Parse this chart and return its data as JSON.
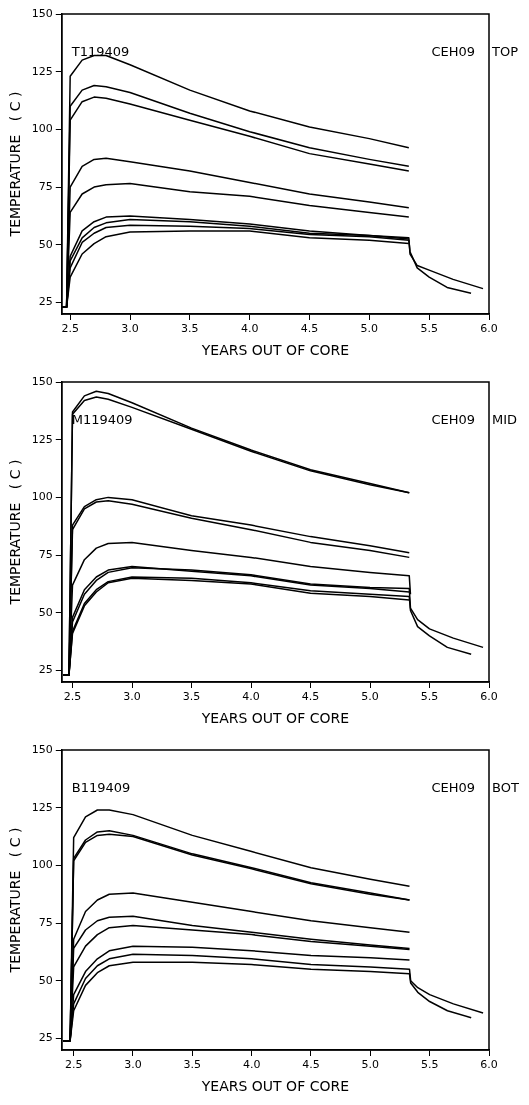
{
  "chart_data": [
    {
      "type": "line",
      "xlabel": "YEARS OUT OF CORE",
      "ylabel": "TEMPERATURE   ( C )",
      "annotations": [
        "T119409",
        "CEH09",
        "TOP"
      ],
      "grid": false,
      "legend": false,
      "marker": "none",
      "line_style": "solid",
      "xlim": [
        2.43,
        6.0
      ],
      "ylim": [
        20,
        150
      ],
      "xticks": [
        {
          "value": 2.5,
          "label": "2.5"
        },
        {
          "value": 3,
          "label": "3.0"
        },
        {
          "value": 3.5,
          "label": "3.5"
        },
        {
          "value": 4,
          "label": "4.0"
        },
        {
          "value": 4.5,
          "label": "4.5"
        },
        {
          "value": 5,
          "label": "5.0"
        },
        {
          "value": 5.5,
          "label": "5.5"
        },
        {
          "value": 6,
          "label": "6.0"
        }
      ],
      "yticks": [
        25,
        50,
        75,
        100,
        125,
        150
      ],
      "x": [
        2.43,
        2.47,
        2.5,
        2.6,
        2.7,
        2.8,
        3.0,
        3.5,
        4.0,
        4.5,
        5.0,
        5.33
      ],
      "series": [
        {
          "color": "#000000",
          "values": [
            23,
            23,
            123,
            130,
            132,
            132,
            128,
            117,
            108,
            101,
            96,
            92
          ]
        },
        {
          "color": "#000000",
          "values": [
            23,
            23,
            110,
            117,
            119,
            118.5,
            116,
            107,
            99,
            92,
            87,
            84
          ]
        },
        {
          "color": "#000000",
          "values": [
            23,
            23,
            104,
            112,
            114,
            113.5,
            111,
            104,
            97,
            89.5,
            85,
            82
          ]
        },
        {
          "color": "#000000",
          "values": [
            23,
            23,
            75,
            84,
            87,
            87.5,
            86,
            82,
            77,
            72,
            68.5,
            66
          ]
        },
        {
          "color": "#000000",
          "values": [
            23,
            23,
            64,
            72,
            75,
            76,
            76.5,
            73,
            71,
            67,
            64,
            62
          ]
        },
        {
          "color": "#000000",
          "x": [
            2.43,
            2.47,
            2.5,
            2.6,
            2.7,
            2.8,
            3.0,
            3.5,
            4.0,
            4.5,
            5.0,
            5.33,
            5.34,
            5.4,
            5.5,
            5.7,
            5.95
          ],
          "values": [
            23,
            23,
            45,
            56,
            60,
            62,
            62.5,
            61,
            59,
            56,
            54,
            53,
            46,
            41,
            39,
            35,
            31
          ]
        },
        {
          "color": "#000000",
          "values": [
            23,
            23,
            43,
            53,
            57.5,
            59.5,
            61,
            60,
            58,
            55,
            54,
            52.5
          ]
        },
        {
          "color": "#000000",
          "x": [
            2.43,
            2.47,
            2.5,
            2.6,
            2.7,
            2.8,
            3.0,
            3.5,
            4.0,
            4.5,
            5.0,
            5.33,
            5.34,
            5.4,
            5.5,
            5.65,
            5.85
          ],
          "values": [
            23,
            23,
            40,
            51,
            55,
            57.5,
            58.5,
            58,
            57,
            54.5,
            53.5,
            52,
            47,
            40,
            36,
            31.5,
            29
          ]
        },
        {
          "color": "#000000",
          "values": [
            23,
            23,
            36,
            46,
            50.5,
            53.5,
            55.5,
            56,
            56,
            53,
            52,
            50.5
          ]
        }
      ]
    },
    {
      "type": "line",
      "xlabel": "YEARS OUT OF CORE",
      "ylabel": "TEMPERATURE   ( C )",
      "annotations": [
        "M119409",
        "CEH09",
        "MID"
      ],
      "grid": false,
      "legend": false,
      "marker": "none",
      "line_style": "solid",
      "xlim": [
        2.41,
        6.0
      ],
      "ylim": [
        20,
        150
      ],
      "xticks": [
        {
          "value": 2.5,
          "label": "2.5"
        },
        {
          "value": 3,
          "label": "3.0"
        },
        {
          "value": 3.5,
          "label": "3.5"
        },
        {
          "value": 4,
          "label": "4.0"
        },
        {
          "value": 4.5,
          "label": "4.5"
        },
        {
          "value": 5,
          "label": "5.0"
        },
        {
          "value": 5.5,
          "label": "5.5"
        },
        {
          "value": 6,
          "label": "6.0"
        }
      ],
      "yticks": [
        25,
        50,
        75,
        100,
        125,
        150
      ],
      "x": [
        2.42,
        2.47,
        2.5,
        2.6,
        2.7,
        2.8,
        3.0,
        3.5,
        4.0,
        4.5,
        5.0,
        5.33
      ],
      "series": [
        {
          "color": "#000000",
          "values": [
            23,
            23,
            137,
            144,
            146,
            145,
            141,
            130,
            120.5,
            112,
            106,
            102
          ]
        },
        {
          "color": "#000000",
          "values": [
            23,
            23,
            136,
            142,
            143.5,
            142.5,
            139,
            129.5,
            120,
            111.5,
            105.5,
            102
          ]
        },
        {
          "color": "#000000",
          "values": [
            23,
            23,
            88,
            96,
            99,
            100,
            99,
            92,
            88,
            83,
            79,
            76
          ]
        },
        {
          "color": "#000000",
          "values": [
            23,
            23,
            86,
            95,
            98,
            98.5,
            97,
            91,
            86,
            80.5,
            77,
            74
          ]
        },
        {
          "color": "#000000",
          "x": [
            2.42,
            2.47,
            2.5,
            2.6,
            2.7,
            2.8,
            3.0,
            3.5,
            4.0,
            4.5,
            5.0,
            5.33,
            5.34
          ],
          "values": [
            23,
            23,
            62,
            73,
            78,
            80,
            80.5,
            77,
            74,
            70,
            67.5,
            66,
            58
          ]
        },
        {
          "color": "#000000",
          "values": [
            23,
            23,
            48,
            60,
            65.5,
            68.5,
            70,
            68,
            66,
            62,
            60.5,
            59
          ]
        },
        {
          "color": "#000000",
          "x": [
            2.42,
            2.47,
            2.5,
            2.6,
            2.7,
            2.8,
            3.0,
            3.5,
            4.0,
            4.5,
            5.0,
            5.33,
            5.34,
            5.4,
            5.5,
            5.7,
            5.95
          ],
          "values": [
            23,
            23,
            46,
            58,
            64,
            67.5,
            69.5,
            68.5,
            66.5,
            62.5,
            61,
            60.5,
            52,
            47,
            43,
            39,
            35
          ]
        },
        {
          "color": "#000000",
          "x": [
            2.42,
            2.47,
            2.5,
            2.6,
            2.7,
            2.8,
            3.0,
            3.5,
            4.0,
            4.5,
            5.0,
            5.33,
            5.34,
            5.4,
            5.5,
            5.65,
            5.85
          ],
          "values": [
            23,
            23,
            42,
            54,
            60,
            63.5,
            65.5,
            65,
            63,
            59.5,
            58,
            57,
            51,
            44,
            40,
            35,
            32
          ]
        },
        {
          "color": "#000000",
          "values": [
            23,
            23,
            41,
            53,
            59,
            63,
            65,
            64,
            62.5,
            58.5,
            57,
            55.5
          ]
        }
      ]
    },
    {
      "type": "line",
      "xlabel": "YEARS OUT OF CORE",
      "ylabel": "TEMPERATURE   ( C )",
      "annotations": [
        "B119409",
        "CEH09",
        "BOT"
      ],
      "grid": false,
      "legend": false,
      "marker": "none",
      "line_style": "solid",
      "xlim": [
        2.4,
        6.0
      ],
      "ylim": [
        20,
        150
      ],
      "xticks": [
        {
          "value": 2.5,
          "label": "2.5"
        },
        {
          "value": 3,
          "label": "3.0"
        },
        {
          "value": 3.5,
          "label": "3.5"
        },
        {
          "value": 4,
          "label": "4.0"
        },
        {
          "value": 4.5,
          "label": "4.5"
        },
        {
          "value": 5,
          "label": "5.0"
        },
        {
          "value": 5.5,
          "label": "5.5"
        },
        {
          "value": 6,
          "label": "6.0"
        }
      ],
      "yticks": [
        25,
        50,
        75,
        100,
        125,
        150
      ],
      "x": [
        2.41,
        2.47,
        2.5,
        2.6,
        2.7,
        2.8,
        3.0,
        3.5,
        4.0,
        4.5,
        5.0,
        5.33
      ],
      "series": [
        {
          "color": "#000000",
          "values": [
            24,
            24,
            112,
            121,
            124,
            124,
            122,
            113,
            106,
            99,
            94,
            91
          ]
        },
        {
          "color": "#000000",
          "values": [
            24,
            24,
            103,
            111,
            114.5,
            115,
            113,
            105,
            99,
            92.5,
            88,
            85
          ]
        },
        {
          "color": "#000000",
          "values": [
            24,
            24,
            102,
            110,
            113,
            113.5,
            112.5,
            104.5,
            98.5,
            92,
            87.5,
            85
          ]
        },
        {
          "color": "#000000",
          "values": [
            24,
            24,
            68,
            80,
            85,
            87.5,
            88,
            84,
            80,
            76,
            73,
            71
          ]
        },
        {
          "color": "#000000",
          "values": [
            24,
            24,
            64,
            72,
            76,
            77.5,
            78,
            74,
            71,
            68,
            65.5,
            64
          ]
        },
        {
          "color": "#000000",
          "values": [
            24,
            24,
            56,
            65,
            70,
            73,
            74,
            72,
            70,
            67,
            65,
            63.5
          ]
        },
        {
          "color": "#000000",
          "values": [
            24,
            24,
            44,
            54,
            59.5,
            63,
            65,
            64.5,
            63,
            61,
            60,
            59
          ]
        },
        {
          "color": "#000000",
          "x": [
            2.41,
            2.47,
            2.5,
            2.6,
            2.7,
            2.8,
            3.0,
            3.5,
            4.0,
            4.5,
            5.0,
            5.33,
            5.34,
            5.4,
            5.5,
            5.7,
            5.95
          ],
          "values": [
            24,
            24,
            40,
            51,
            56.5,
            59.5,
            61.5,
            61,
            59.5,
            57,
            56,
            55,
            50,
            47,
            44,
            40,
            36
          ]
        },
        {
          "color": "#000000",
          "x": [
            2.41,
            2.47,
            2.5,
            2.6,
            2.7,
            2.8,
            3.0,
            3.5,
            4.0,
            4.5,
            5.0,
            5.33,
            5.34,
            5.4,
            5.5,
            5.65,
            5.85
          ],
          "values": [
            24,
            24,
            37,
            48,
            53.5,
            56.5,
            58,
            58,
            57,
            55,
            54,
            53,
            49,
            45,
            41,
            37,
            34
          ]
        }
      ]
    }
  ]
}
